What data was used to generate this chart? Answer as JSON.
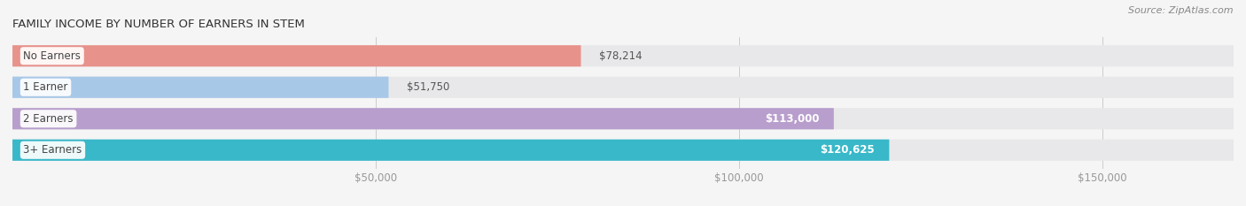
{
  "title": "FAMILY INCOME BY NUMBER OF EARNERS IN STEM",
  "source": "Source: ZipAtlas.com",
  "categories": [
    "No Earners",
    "1 Earner",
    "2 Earners",
    "3+ Earners"
  ],
  "values": [
    78214,
    51750,
    113000,
    120625
  ],
  "bar_colors": [
    "#e8928c",
    "#a8c8e8",
    "#b89ecc",
    "#38b8c8"
  ],
  "bar_bg_color": "#e8e8ea",
  "xlim_min": 0,
  "xlim_max": 168000,
  "xticks": [
    50000,
    100000,
    150000
  ],
  "xtick_labels": [
    "$50,000",
    "$100,000",
    "$150,000"
  ],
  "value_labels": [
    "$78,214",
    "$51,750",
    "$113,000",
    "$120,625"
  ],
  "bar_height": 0.68,
  "fig_bg_color": "#f5f5f5",
  "title_fontsize": 9.5,
  "source_fontsize": 8.0,
  "label_fontsize": 8.5,
  "value_fontsize": 8.5
}
